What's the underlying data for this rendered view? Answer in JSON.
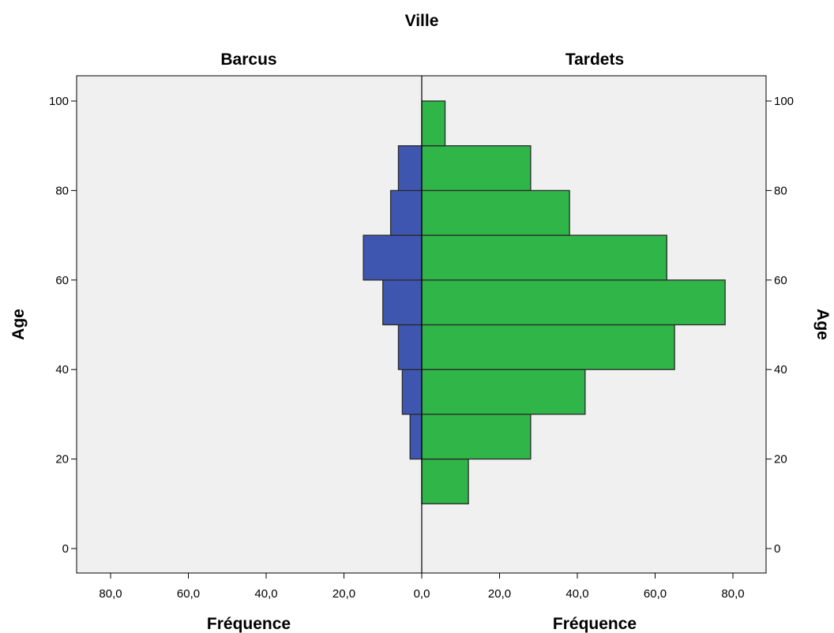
{
  "chart_data": {
    "type": "bar",
    "orientation": "horizontal",
    "subtype": "population pyramid",
    "title": "Ville",
    "panels": [
      {
        "name": "Barcus",
        "color": "#3f56b0",
        "direction": "left"
      },
      {
        "name": "Tardets",
        "color": "#2fb548",
        "direction": "right"
      }
    ],
    "ylabel": "Age",
    "xlabel": "Fréquence",
    "ylim": [
      -5,
      105
    ],
    "xlim": [
      -90,
      90
    ],
    "y_ticks": [
      0,
      20,
      40,
      60,
      80,
      100
    ],
    "x_ticks": [
      80,
      60,
      40,
      20,
      0,
      20,
      40,
      60,
      80
    ],
    "x_tick_labels": [
      "80,0",
      "60,0",
      "40,0",
      "20,0",
      "0,0",
      "20,0",
      "40,0",
      "60,0",
      "80,0"
    ],
    "bins": [
      [
        10,
        20
      ],
      [
        20,
        30
      ],
      [
        30,
        40
      ],
      [
        40,
        50
      ],
      [
        50,
        60
      ],
      [
        60,
        70
      ],
      [
        70,
        80
      ],
      [
        80,
        90
      ],
      [
        90,
        100
      ]
    ],
    "series": [
      {
        "name": "Barcus",
        "values": [
          0,
          3,
          5,
          6,
          10,
          15,
          8,
          6,
          0
        ]
      },
      {
        "name": "Tardets",
        "values": [
          12,
          28,
          42,
          65,
          78,
          63,
          38,
          28,
          6
        ]
      }
    ],
    "grid": false,
    "plot_background": "#f0f0f0"
  }
}
